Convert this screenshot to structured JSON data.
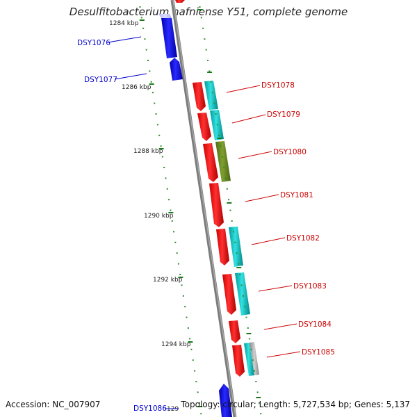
{
  "title": "Desulfitobacterium hafniense Y51, complete genome",
  "accession_label": "Accession:",
  "accession_value": "NC_007907",
  "summary": "Topology: circular; Length: 5,727,534 bp; Genes: 5,137",
  "colors": {
    "backbone": "#808080",
    "tick_major": "#1a7a1a",
    "tick_minor": "#2e8b2e",
    "forward_gene": "#ff0000",
    "reverse_gene": "#0000ff",
    "reverse_gene_pale": "#c8c8ff",
    "cog_cyan": "#00cccc",
    "cog_olive": "#6b8e23",
    "cog_gray": "#aaaaaa",
    "label_forward": "#cc0000",
    "label_reverse": "#0000cc"
  },
  "ticks": [
    "1284 kbp",
    "1286 kbp",
    "1288 kbp",
    "1290 kbp",
    "1292 kbp",
    "1294 kbp",
    "129"
  ],
  "genes": [
    {
      "id": "DSY1076",
      "strand": "reverse"
    },
    {
      "id": "DSY1077",
      "strand": "reverse"
    },
    {
      "id": "DSY1078",
      "strand": "forward",
      "cog": "cyan"
    },
    {
      "id": "DSY1079",
      "strand": "forward",
      "cog": "cyan"
    },
    {
      "id": "DSY1080",
      "strand": "forward",
      "cog": "olive"
    },
    {
      "id": "DSY1081",
      "strand": "forward",
      "cog": ""
    },
    {
      "id": "DSY1082",
      "strand": "forward",
      "cog": "cyan"
    },
    {
      "id": "DSY1083",
      "strand": "forward",
      "cog": "cyan"
    },
    {
      "id": "DSY1084",
      "strand": "forward",
      "cog": ""
    },
    {
      "id": "DSY1085",
      "strand": "forward",
      "cog": "cyan-gray"
    },
    {
      "id": "DSY1086",
      "strand": "reverse"
    }
  ]
}
